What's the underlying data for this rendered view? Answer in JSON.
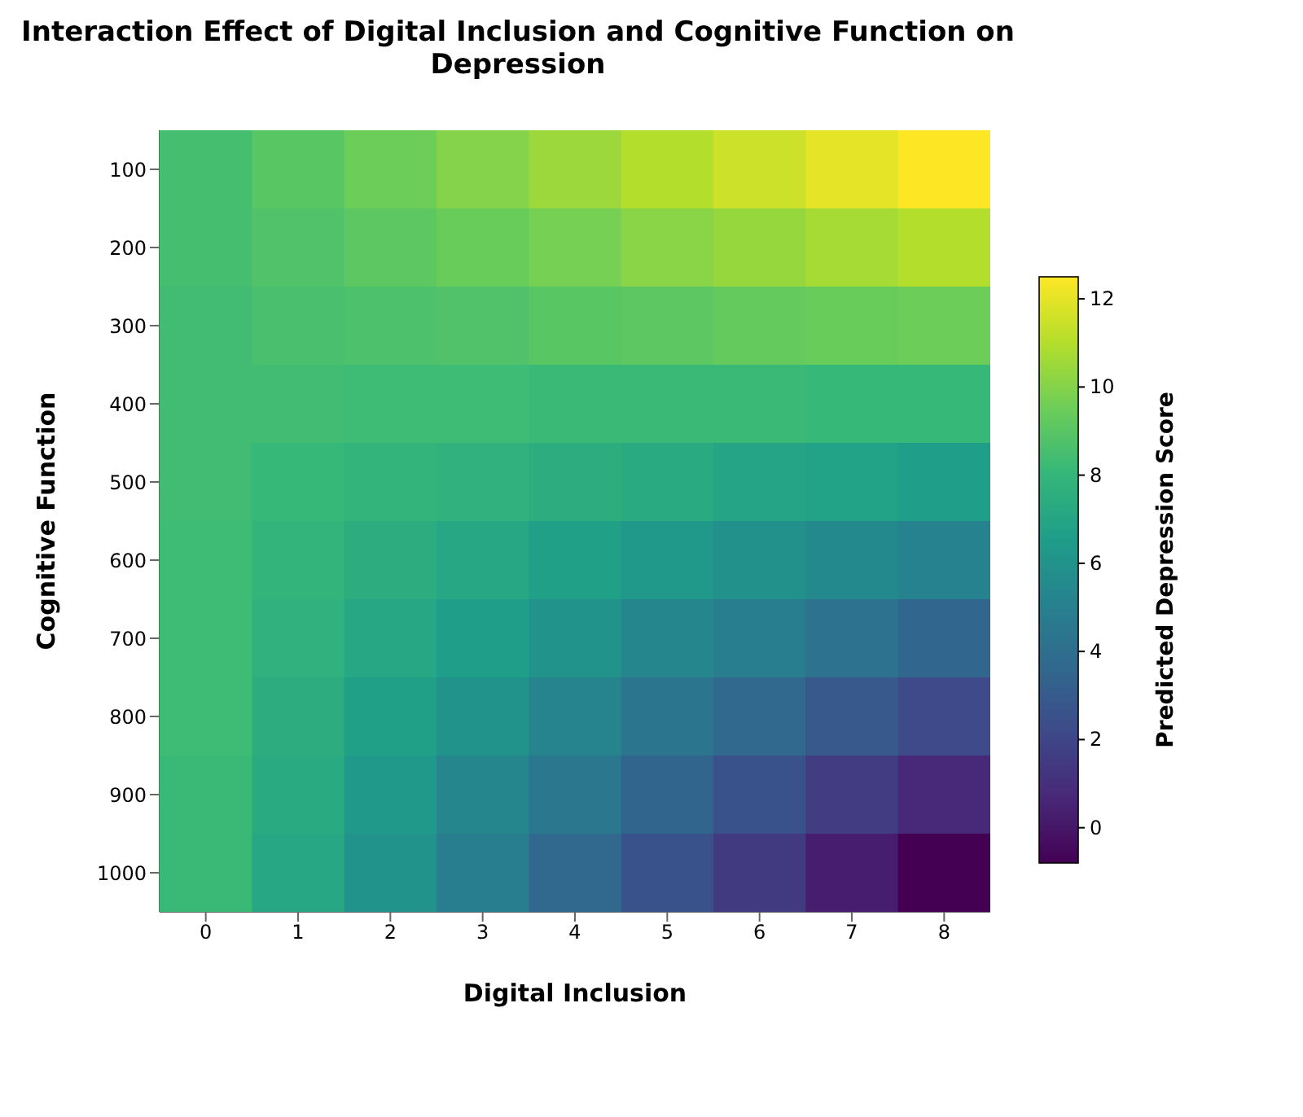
{
  "chart_data": {
    "type": "heatmap",
    "title": "Interaction Effect of Digital Inclusion and Cognitive Function on Depression",
    "xlabel": "Digital Inclusion",
    "ylabel": "Cognitive Function",
    "clabel": "Predicted Depression Score",
    "categories": [
      "0",
      "1",
      "2",
      "3",
      "4",
      "5",
      "6",
      "7",
      "8"
    ],
    "y_categories": [
      "100",
      "200",
      "300",
      "400",
      "500",
      "600",
      "700",
      "800",
      "900",
      "1000"
    ],
    "cells": [
      [
        8.5,
        9.0,
        9.5,
        10.0,
        10.5,
        11.0,
        11.5,
        12.0,
        12.5
      ],
      [
        8.5,
        8.8,
        9.1,
        9.4,
        9.7,
        10.1,
        10.4,
        10.7,
        11.0
      ],
      [
        8.4,
        8.6,
        8.7,
        8.8,
        9.0,
        9.1,
        9.3,
        9.4,
        9.5
      ],
      [
        8.4,
        8.4,
        8.3,
        8.3,
        8.2,
        8.2,
        8.2,
        8.1,
        8.1
      ],
      [
        8.4,
        8.1,
        7.9,
        7.7,
        7.5,
        7.3,
        7.0,
        6.8,
        6.6
      ],
      [
        8.3,
        7.9,
        7.5,
        7.1,
        6.7,
        6.3,
        5.9,
        5.5,
        5.1
      ],
      [
        8.3,
        7.7,
        7.1,
        6.6,
        6.0,
        5.4,
        4.8,
        4.2,
        3.6
      ],
      [
        8.3,
        7.5,
        6.7,
        6.0,
        5.2,
        4.4,
        3.7,
        2.9,
        2.2
      ],
      [
        8.2,
        7.3,
        6.3,
        5.4,
        4.5,
        3.5,
        2.6,
        1.6,
        0.7
      ],
      [
        8.2,
        7.1,
        6.0,
        4.8,
        3.7,
        2.6,
        1.5,
        0.3,
        -0.8
      ]
    ],
    "clim": [
      -0.8,
      12.5
    ],
    "cticks": [
      0,
      2,
      4,
      6,
      8,
      10,
      12
    ]
  }
}
